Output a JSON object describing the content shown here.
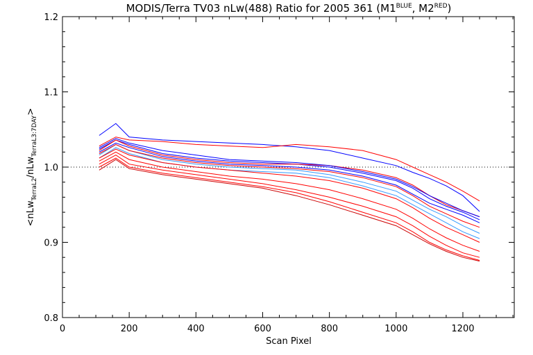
{
  "chart_data": {
    "type": "line",
    "title": {
      "main": "MODIS/Terra TV03 nLw(488) Ratio for 2005 361 (M1",
      "sup1": "BLUE",
      "mid": ", M2",
      "sup2": "RED",
      "end": ")"
    },
    "xlabel": "Scan Pixel",
    "ylabel": {
      "open": "<nLw",
      "sub1": "TerraL2",
      "slash": "/nLw",
      "sub2": "TerraL3:7DAY",
      "close": ">"
    },
    "xlim": [
      0,
      1354
    ],
    "ylim": [
      0.8,
      1.2
    ],
    "x_ticks": [
      0,
      200,
      400,
      600,
      800,
      1000,
      1200
    ],
    "y_ticks": [
      0.8,
      0.9,
      1.0,
      1.1,
      1.2
    ],
    "x_tick_labels": [
      "0",
      "200",
      "400",
      "600",
      "800",
      "1000",
      "1200"
    ],
    "y_tick_labels": [
      "0.8",
      "0.9",
      "1.0",
      "1.1",
      "1.2"
    ],
    "reference_line": 1.0,
    "colors": {
      "M1": "#0000ff",
      "M1_light": "#3399ff",
      "M2": "#ff0000",
      "M2_dark": "#cc0000"
    },
    "series": [
      {
        "color": "#0000ff",
        "x": [
          110,
          160,
          200,
          300,
          400,
          500,
          600,
          700,
          800,
          900,
          1000,
          1050,
          1100,
          1150,
          1200,
          1250
        ],
        "y": [
          1.042,
          1.058,
          1.04,
          1.036,
          1.034,
          1.032,
          1.03,
          1.027,
          1.022,
          1.012,
          1.002,
          0.993,
          0.985,
          0.975,
          0.962,
          0.941
        ]
      },
      {
        "color": "#ff0000",
        "x": [
          110,
          160,
          200,
          300,
          400,
          500,
          600,
          700,
          800,
          900,
          1000,
          1050,
          1100,
          1150,
          1200,
          1250
        ],
        "y": [
          1.028,
          1.04,
          1.036,
          1.034,
          1.03,
          1.028,
          1.026,
          1.03,
          1.027,
          1.022,
          1.01,
          1.0,
          0.99,
          0.98,
          0.968,
          0.955
        ]
      },
      {
        "color": "#0000ff",
        "x": [
          110,
          160,
          200,
          300,
          400,
          500,
          600,
          700,
          800,
          900,
          1000,
          1050,
          1100,
          1150,
          1200,
          1250
        ],
        "y": [
          1.024,
          1.036,
          1.03,
          1.018,
          1.012,
          1.008,
          1.006,
          1.004,
          1.0,
          0.992,
          0.982,
          0.972,
          0.958,
          0.948,
          0.94,
          0.93
        ]
      },
      {
        "color": "#0000ff",
        "x": [
          110,
          160,
          200,
          300,
          400,
          500,
          600,
          700,
          800,
          900,
          1000,
          1050,
          1100,
          1150,
          1200,
          1250
        ],
        "y": [
          1.02,
          1.032,
          1.026,
          1.014,
          1.008,
          1.004,
          1.002,
          1.0,
          0.996,
          0.988,
          0.976,
          0.964,
          0.952,
          0.944,
          0.936,
          0.926
        ]
      },
      {
        "color": "#3399ff",
        "x": [
          110,
          160,
          200,
          300,
          400,
          500,
          600,
          700,
          800,
          900,
          1000,
          1050,
          1100,
          1150,
          1200,
          1250
        ],
        "y": [
          1.016,
          1.03,
          1.022,
          1.01,
          1.004,
          1.0,
          0.998,
          0.996,
          0.99,
          0.98,
          0.968,
          0.956,
          0.944,
          0.934,
          0.922,
          0.912
        ]
      },
      {
        "color": "#3399ff",
        "x": [
          110,
          160,
          200,
          300,
          400,
          500,
          600,
          700,
          800,
          900,
          1000,
          1050,
          1100,
          1150,
          1200,
          1250
        ],
        "y": [
          1.012,
          1.026,
          1.018,
          1.006,
          1.0,
          0.996,
          0.994,
          0.992,
          0.986,
          0.975,
          0.962,
          0.95,
          0.938,
          0.926,
          0.914,
          0.905
        ]
      },
      {
        "color": "#ff0000",
        "x": [
          110,
          160,
          200,
          300,
          400,
          500,
          600,
          700,
          800,
          900,
          1000,
          1050,
          1100,
          1150,
          1200,
          1250
        ],
        "y": [
          1.022,
          1.036,
          1.028,
          1.016,
          1.01,
          1.006,
          1.004,
          1.004,
          1.002,
          0.996,
          0.986,
          0.976,
          0.962,
          0.95,
          0.942,
          0.934
        ]
      },
      {
        "color": "#ff0000",
        "x": [
          110,
          160,
          200,
          300,
          400,
          500,
          600,
          700,
          800,
          900,
          1000,
          1050,
          1100,
          1150,
          1200,
          1250
        ],
        "y": [
          1.018,
          1.03,
          1.022,
          1.012,
          1.006,
          1.002,
          1.0,
          0.998,
          0.994,
          0.986,
          0.974,
          0.962,
          0.948,
          0.938,
          0.928,
          0.92
        ]
      },
      {
        "color": "#ff0000",
        "x": [
          110,
          160,
          200,
          300,
          400,
          500,
          600,
          700,
          800,
          900,
          1000,
          1050,
          1100,
          1150,
          1200,
          1250
        ],
        "y": [
          1.012,
          1.024,
          1.016,
          1.006,
          1.0,
          0.996,
          0.992,
          0.988,
          0.982,
          0.972,
          0.958,
          0.946,
          0.932,
          0.92,
          0.91,
          0.9
        ]
      },
      {
        "color": "#ff0000",
        "x": [
          110,
          160,
          200,
          300,
          400,
          500,
          600,
          700,
          800,
          900,
          1000,
          1050,
          1100,
          1150,
          1200,
          1250
        ],
        "y": [
          1.008,
          1.02,
          1.01,
          1.0,
          0.994,
          0.988,
          0.984,
          0.978,
          0.97,
          0.958,
          0.944,
          0.932,
          0.918,
          0.906,
          0.896,
          0.888
        ]
      },
      {
        "color": "#ff0000",
        "x": [
          110,
          160,
          200,
          300,
          400,
          500,
          600,
          700,
          800,
          900,
          1000,
          1050,
          1100,
          1150,
          1200,
          1250
        ],
        "y": [
          1.004,
          1.016,
          1.004,
          0.996,
          0.99,
          0.984,
          0.978,
          0.97,
          0.96,
          0.948,
          0.934,
          0.922,
          0.908,
          0.896,
          0.886,
          0.88
        ]
      },
      {
        "color": "#ff0000",
        "x": [
          110,
          160,
          200,
          300,
          400,
          500,
          600,
          700,
          800,
          900,
          1000,
          1050,
          1100,
          1150,
          1200,
          1250
        ],
        "y": [
          1.0,
          1.012,
          1.0,
          0.992,
          0.986,
          0.98,
          0.974,
          0.966,
          0.954,
          0.94,
          0.926,
          0.914,
          0.9,
          0.89,
          0.882,
          0.876
        ]
      },
      {
        "color": "#cc0000",
        "x": [
          110,
          160,
          200,
          300,
          400,
          500,
          600,
          700,
          800,
          900,
          1000,
          1050,
          1100,
          1150,
          1200,
          1250
        ],
        "y": [
          0.996,
          1.01,
          0.998,
          0.99,
          0.984,
          0.978,
          0.972,
          0.962,
          0.95,
          0.936,
          0.922,
          0.91,
          0.898,
          0.888,
          0.88,
          0.875
        ]
      },
      {
        "color": "#0000ff",
        "x": [
          110,
          160,
          200,
          300,
          400,
          500,
          600,
          700,
          800,
          900,
          1000,
          1050,
          1100,
          1150,
          1200,
          1250
        ],
        "y": [
          1.026,
          1.038,
          1.032,
          1.022,
          1.016,
          1.01,
          1.008,
          1.006,
          1.002,
          0.994,
          0.984,
          0.974,
          0.962,
          0.952,
          0.942,
          0.934
        ]
      }
    ]
  }
}
